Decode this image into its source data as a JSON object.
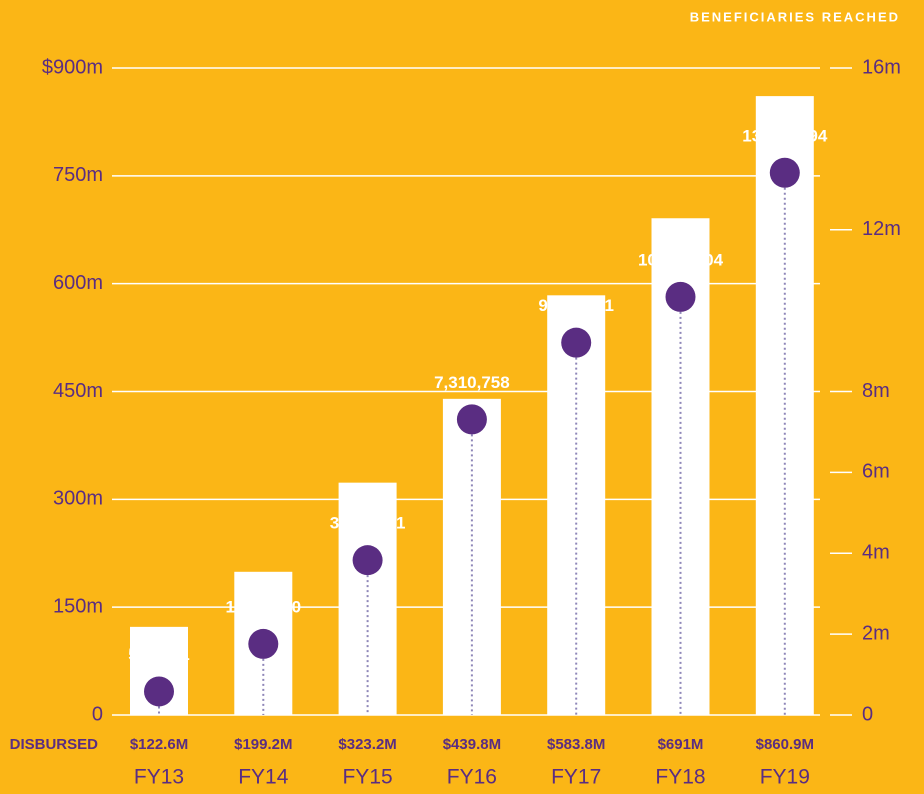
{
  "chart_data": {
    "type": "bar-dot",
    "title": "BENEFICIARIES REACHED",
    "bar_axis_label": "DISBURSED",
    "categories": [
      "FY13",
      "FY14",
      "FY15",
      "FY16",
      "FY17",
      "FY18",
      "FY19"
    ],
    "series": [
      {
        "name": "DISBURSED",
        "color": "#ffffff",
        "values": [
          122.6,
          199.2,
          323.2,
          439.8,
          583.8,
          691,
          860.9
        ],
        "value_labels": [
          "$122.6M",
          "$199.2M",
          "$323.2M",
          "$439.8M",
          "$583.8M",
          "$691M",
          "$860.9M"
        ]
      },
      {
        "name": "BENEFICIARIES REACHED",
        "color": "#5a2d82",
        "axis": "y2",
        "values": [
          582561,
          1757470,
          3828451,
          7310758,
          9207431,
          10340104,
          13408994
        ],
        "value_labels": [
          "582,561",
          "1,757,470",
          "3,828,451",
          "7,310,758",
          "9,207,431",
          "10,340,104",
          "13,408,994"
        ]
      }
    ],
    "ylim": [
      0,
      900
    ],
    "yticks": [
      0,
      {
        "value": 150,
        "label": "150m"
      },
      {
        "value": 300,
        "label": "300m"
      },
      {
        "value": 450,
        "label": "450m"
      },
      {
        "value": 600,
        "label": "600m"
      },
      {
        "value": 750,
        "label": "750m"
      },
      {
        "value": 900,
        "label": "$900m"
      }
    ],
    "y2lim": [
      0,
      16000000
    ],
    "y2ticks": [
      0,
      {
        "value": 4000000,
        "label": "4m"
      },
      {
        "value": 2000000,
        "label": "2m"
      },
      {
        "value": 6000000,
        "label": "6m"
      },
      {
        "value": 8000000,
        "label": "8m"
      },
      {
        "value": 12000000,
        "label": "12m"
      },
      {
        "value": 16000000,
        "label": "16m"
      }
    ],
    "grid": true
  }
}
